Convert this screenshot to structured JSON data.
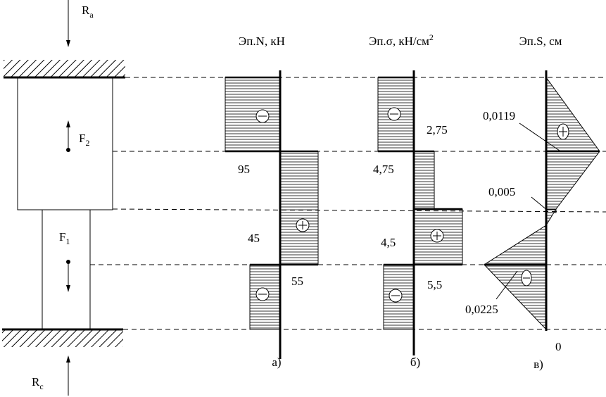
{
  "loads": {
    "ra": {
      "symbol": "R",
      "sub": "a"
    },
    "rc": {
      "symbol": "R",
      "sub": "c"
    },
    "f2": {
      "symbol": "F",
      "sub": "2"
    },
    "f1": {
      "symbol": "F",
      "sub": "1"
    }
  },
  "diagrams": {
    "n": {
      "title": "Эп.N, кН",
      "labels": [
        "95",
        "45",
        "55"
      ],
      "caption": "а)"
    },
    "sigma": {
      "title": "Эп.σ, кН/см",
      "title_sup": "2",
      "labels": [
        "2,75",
        "4,75",
        "4,5",
        "5,5"
      ],
      "caption": "б)"
    },
    "s": {
      "title": "Эп.S, см",
      "labels": [
        "0,0119",
        "0,005",
        "0,0225",
        "0"
      ],
      "caption": "в)"
    }
  }
}
